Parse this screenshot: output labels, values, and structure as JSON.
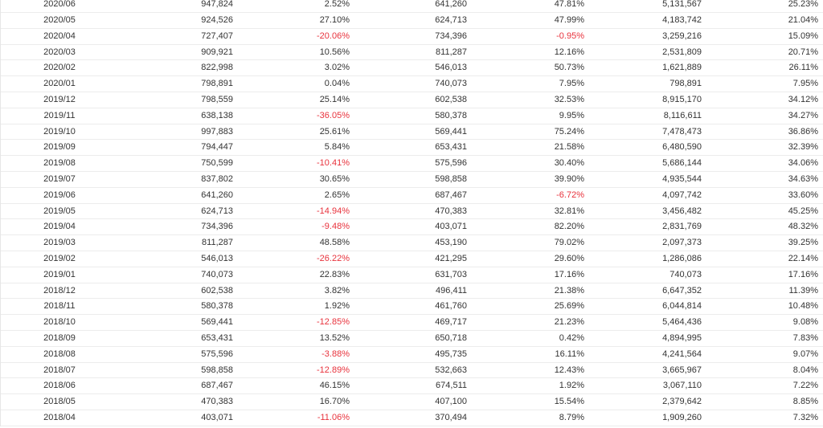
{
  "table": {
    "rows": [
      [
        "2020/06",
        "947,824",
        "2.52%",
        "641,260",
        "47.81%",
        "5,131,567",
        "25.23%"
      ],
      [
        "2020/05",
        "924,526",
        "27.10%",
        "624,713",
        "47.99%",
        "4,183,742",
        "21.04%"
      ],
      [
        "2020/04",
        "727,407",
        "-20.06%",
        "734,396",
        "-0.95%",
        "3,259,216",
        "15.09%"
      ],
      [
        "2020/03",
        "909,921",
        "10.56%",
        "811,287",
        "12.16%",
        "2,531,809",
        "20.71%"
      ],
      [
        "2020/02",
        "822,998",
        "3.02%",
        "546,013",
        "50.73%",
        "1,621,889",
        "26.11%"
      ],
      [
        "2020/01",
        "798,891",
        "0.04%",
        "740,073",
        "7.95%",
        "798,891",
        "7.95%"
      ],
      [
        "2019/12",
        "798,559",
        "25.14%",
        "602,538",
        "32.53%",
        "8,915,170",
        "34.12%"
      ],
      [
        "2019/11",
        "638,138",
        "-36.05%",
        "580,378",
        "9.95%",
        "8,116,611",
        "34.27%"
      ],
      [
        "2019/10",
        "997,883",
        "25.61%",
        "569,441",
        "75.24%",
        "7,478,473",
        "36.86%"
      ],
      [
        "2019/09",
        "794,447",
        "5.84%",
        "653,431",
        "21.58%",
        "6,480,590",
        "32.39%"
      ],
      [
        "2019/08",
        "750,599",
        "-10.41%",
        "575,596",
        "30.40%",
        "5,686,144",
        "34.06%"
      ],
      [
        "2019/07",
        "837,802",
        "30.65%",
        "598,858",
        "39.90%",
        "4,935,544",
        "34.63%"
      ],
      [
        "2019/06",
        "641,260",
        "2.65%",
        "687,467",
        "-6.72%",
        "4,097,742",
        "33.60%"
      ],
      [
        "2019/05",
        "624,713",
        "-14.94%",
        "470,383",
        "32.81%",
        "3,456,482",
        "45.25%"
      ],
      [
        "2019/04",
        "734,396",
        "-9.48%",
        "403,071",
        "82.20%",
        "2,831,769",
        "48.32%"
      ],
      [
        "2019/03",
        "811,287",
        "48.58%",
        "453,190",
        "79.02%",
        "2,097,373",
        "39.25%"
      ],
      [
        "2019/02",
        "546,013",
        "-26.22%",
        "421,295",
        "29.60%",
        "1,286,086",
        "22.14%"
      ],
      [
        "2019/01",
        "740,073",
        "22.83%",
        "631,703",
        "17.16%",
        "740,073",
        "17.16%"
      ],
      [
        "2018/12",
        "602,538",
        "3.82%",
        "496,411",
        "21.38%",
        "6,647,352",
        "11.39%"
      ],
      [
        "2018/11",
        "580,378",
        "1.92%",
        "461,760",
        "25.69%",
        "6,044,814",
        "10.48%"
      ],
      [
        "2018/10",
        "569,441",
        "-12.85%",
        "469,717",
        "21.23%",
        "5,464,436",
        "9.08%"
      ],
      [
        "2018/09",
        "653,431",
        "13.52%",
        "650,718",
        "0.42%",
        "4,894,995",
        "7.83%"
      ],
      [
        "2018/08",
        "575,596",
        "-3.88%",
        "495,735",
        "16.11%",
        "4,241,564",
        "9.07%"
      ],
      [
        "2018/07",
        "598,858",
        "-12.89%",
        "532,663",
        "12.43%",
        "3,665,967",
        "8.04%"
      ],
      [
        "2018/06",
        "687,467",
        "46.15%",
        "674,511",
        "1.92%",
        "3,067,110",
        "7.22%"
      ],
      [
        "2018/05",
        "470,383",
        "16.70%",
        "407,100",
        "15.54%",
        "2,379,642",
        "8.85%"
      ],
      [
        "2018/04",
        "403,071",
        "-11.06%",
        "370,494",
        "8.79%",
        "1,909,260",
        "7.32%"
      ]
    ]
  },
  "colors": {
    "negative": "#e8323c",
    "text": "#333333",
    "border": "#ececec"
  }
}
